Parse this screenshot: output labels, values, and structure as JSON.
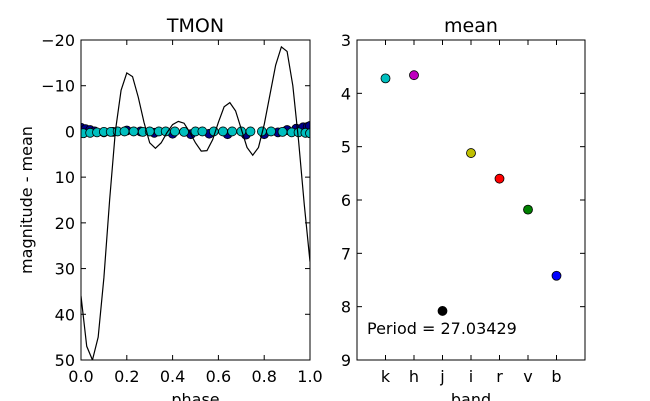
{
  "chart_data": [
    {
      "type": "line",
      "title": "TMON",
      "xlabel": "phase",
      "ylabel": "magnitude - mean",
      "xlim": [
        0,
        1
      ],
      "ylim": [
        50,
        -20
      ],
      "xticks": [
        {
          "value": 0,
          "label": "0.0"
        },
        {
          "value": 0.2,
          "label": "0.2"
        },
        {
          "value": 0.4,
          "label": "0.4"
        },
        {
          "value": 0.6,
          "label": "0.6"
        },
        {
          "value": 0.8,
          "label": "0.8"
        },
        {
          "value": 1,
          "label": "1.0"
        }
      ],
      "yticks": [
        {
          "value": -20,
          "label": "−20"
        },
        {
          "value": -10,
          "label": "−10"
        },
        0,
        10,
        20,
        30,
        40,
        50
      ],
      "series": [
        {
          "style": "markers",
          "color": "#00008b",
          "x": [
            0,
            0.02,
            0.04,
            0.06,
            0.1,
            0.14,
            0.2,
            0.26,
            0.32,
            0.4,
            0.48,
            0.56,
            0.64,
            0.72,
            0.8,
            0.86,
            0.9,
            0.94,
            0.97,
            0.99,
            1
          ],
          "values": [
            -0.8,
            -0.5,
            -0.3,
            0,
            0.2,
            0.1,
            -0.2,
            0,
            0.3,
            0.5,
            0.6,
            0.5,
            0.6,
            0.7,
            0.6,
            0.2,
            -0.3,
            -0.6,
            -0.9,
            -1,
            -1.2
          ]
        },
        {
          "style": "markers",
          "color": "#00bfbf",
          "x": [
            0.01,
            0.04,
            0.07,
            0.1,
            0.13,
            0.16,
            0.19,
            0.23,
            0.27,
            0.3,
            0.34,
            0.37,
            0.41,
            0.45,
            0.5,
            0.53,
            0.58,
            0.62,
            0.66,
            0.7,
            0.74,
            0.79,
            0.83,
            0.88,
            0.92,
            0.95,
            0.98,
            1
          ],
          "values": [
            0.4,
            0.3,
            0.2,
            0.1,
            0.1,
            0,
            0,
            0,
            0.1,
            0,
            0,
            0,
            0,
            0.1,
            0,
            0,
            0,
            0,
            0,
            0,
            0,
            0,
            0,
            0.1,
            0.2,
            0.2,
            0.3,
            0.4
          ]
        },
        {
          "style": "line",
          "color": "#000000",
          "x": [
            0,
            0.025,
            0.05,
            0.075,
            0.1,
            0.125,
            0.15,
            0.175,
            0.2,
            0.225,
            0.25,
            0.275,
            0.3,
            0.325,
            0.35,
            0.375,
            0.4,
            0.425,
            0.45,
            0.475,
            0.5,
            0.525,
            0.55,
            0.575,
            0.6,
            0.625,
            0.65,
            0.675,
            0.7,
            0.725,
            0.75,
            0.775,
            0.8,
            0.825,
            0.85,
            0.875,
            0.9,
            0.925,
            0.95,
            0.975,
            1
          ],
          "values": [
            36,
            47,
            50,
            45,
            32,
            15,
            0,
            -9,
            -12.8,
            -12,
            -7.5,
            -2,
            2.5,
            3.7,
            2.5,
            0.3,
            -1.5,
            -2.2,
            -1.8,
            0.2,
            2.5,
            4.3,
            4.2,
            1.8,
            -2,
            -5.4,
            -6.3,
            -4.5,
            -0.5,
            3.5,
            5.2,
            3.5,
            -1.5,
            -8,
            -14.5,
            -18.5,
            -17.5,
            -10,
            2,
            16,
            28.5
          ]
        }
      ]
    },
    {
      "type": "scatter",
      "title": "mean",
      "xlabel": "band",
      "annotation": "Period = 27.03429",
      "categories": [
        "k",
        "h",
        "j",
        "i",
        "r",
        "v",
        "b"
      ],
      "values": [
        3.72,
        3.66,
        8.08,
        5.12,
        5.6,
        6.18,
        7.42
      ],
      "colors": [
        "#00bfbf",
        "#bf00bf",
        "#000000",
        "#bfbf00",
        "#ff0000",
        "#008000",
        "#0000ff"
      ],
      "ylim": [
        9,
        3
      ],
      "yticks": [
        3,
        4,
        5,
        6,
        7,
        8,
        9
      ]
    }
  ]
}
